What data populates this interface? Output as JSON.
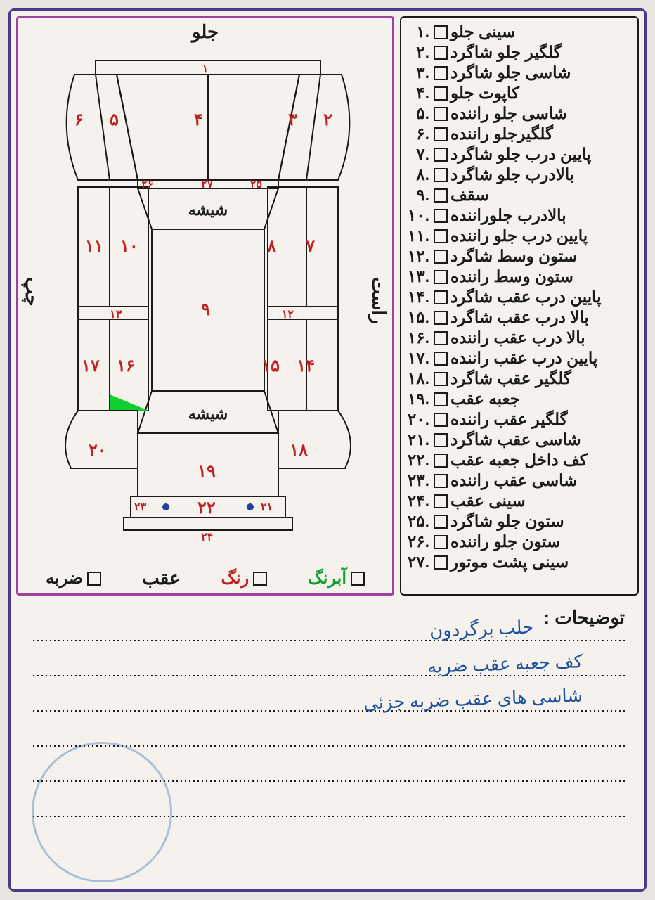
{
  "checklist": [
    {
      "num": ".۱",
      "label": "سینی جلو"
    },
    {
      "num": ".۲",
      "label": "گلگیر جلو شاگرد"
    },
    {
      "num": ".۳",
      "label": "شاسی جلو شاگرد"
    },
    {
      "num": ".۴",
      "label": "کاپوت جلو"
    },
    {
      "num": ".۵",
      "label": "شاسی جلو راننده"
    },
    {
      "num": ".۶",
      "label": "گلگیرجلو راننده"
    },
    {
      "num": ".۷",
      "label": "پایین درب جلو شاگرد"
    },
    {
      "num": ".۸",
      "label": "بالادرب جلو شاگرد"
    },
    {
      "num": ".۹",
      "label": "سقف"
    },
    {
      "num": ".۱۰",
      "label": "بالادرب جلوراننده"
    },
    {
      "num": ".۱۱",
      "label": "پایین درب جلو راننده"
    },
    {
      "num": ".۱۲",
      "label": "ستون وسط شاگرد"
    },
    {
      "num": ".۱۳",
      "label": "ستون وسط راننده"
    },
    {
      "num": ".۱۴",
      "label": "پایین درب عقب شاگرد"
    },
    {
      "num": ".۱۵",
      "label": "بالا درب عقب شاگرد"
    },
    {
      "num": ".۱۶",
      "label": "بالا درب عقب راننده"
    },
    {
      "num": ".۱۷",
      "label": "پایین درب عقب راننده"
    },
    {
      "num": ".۱۸",
      "label": "گلگیر عقب شاگرد"
    },
    {
      "num": ".۱۹",
      "label": "جعبه عقب"
    },
    {
      "num": ".۲۰",
      "label": "گلگیر عقب راننده"
    },
    {
      "num": ".۲۱",
      "label": "شاسی عقب شاگرد"
    },
    {
      "num": ".۲۲",
      "label": "کف داخل جعبه عقب"
    },
    {
      "num": ".۲۳",
      "label": "شاسی عقب راننده"
    },
    {
      "num": ".۲۴",
      "label": "سینی عقب"
    },
    {
      "num": ".۲۵",
      "label": "ستون جلو شاگرد"
    },
    {
      "num": ".۲۶",
      "label": "ستون جلو راننده"
    },
    {
      "num": ".۲۷",
      "label": "سینی پشت موتور"
    }
  ],
  "diagram": {
    "front": "جلو",
    "back": "عقب",
    "right": "راست",
    "left": "چپ",
    "glass": "شیشه",
    "legend": {
      "abrang": "آبرنگ",
      "rang": "رنگ",
      "zarbe": "ضربه"
    },
    "colors": {
      "abrang_color": "#10a030",
      "rang_color": "#c02020",
      "zarbe_color": "#1a1a1a",
      "number_color": "#c02020",
      "glass_fill": "#888888",
      "green_mark": "#10d030"
    },
    "nums": {
      "n1": "۱",
      "n2": "۲",
      "n3": "۳",
      "n4": "۴",
      "n5": "۵",
      "n6": "۶",
      "n7": "۷",
      "n8": "۸",
      "n9": "۹",
      "n10": "۱۰",
      "n11": "۱۱",
      "n12": "۱۲",
      "n13": "۱۳",
      "n14": "۱۴",
      "n15": "۱۵",
      "n16": "۱۶",
      "n17": "۱۷",
      "n18": "۱۸",
      "n19": "۱۹",
      "n20": "۲۰",
      "n21": "۲۱",
      "n22": "۲۲",
      "n23": "۲۳",
      "n24": "۲۴",
      "n25": "۲۵",
      "n26": "۲۶",
      "n27": "۲۷"
    }
  },
  "notes": {
    "title": "توضیحات :",
    "handwritten": [
      "حلب برگردون",
      "کف جعبه عقب ضربه",
      "شاسی های عقب ضربه جزئی"
    ]
  }
}
